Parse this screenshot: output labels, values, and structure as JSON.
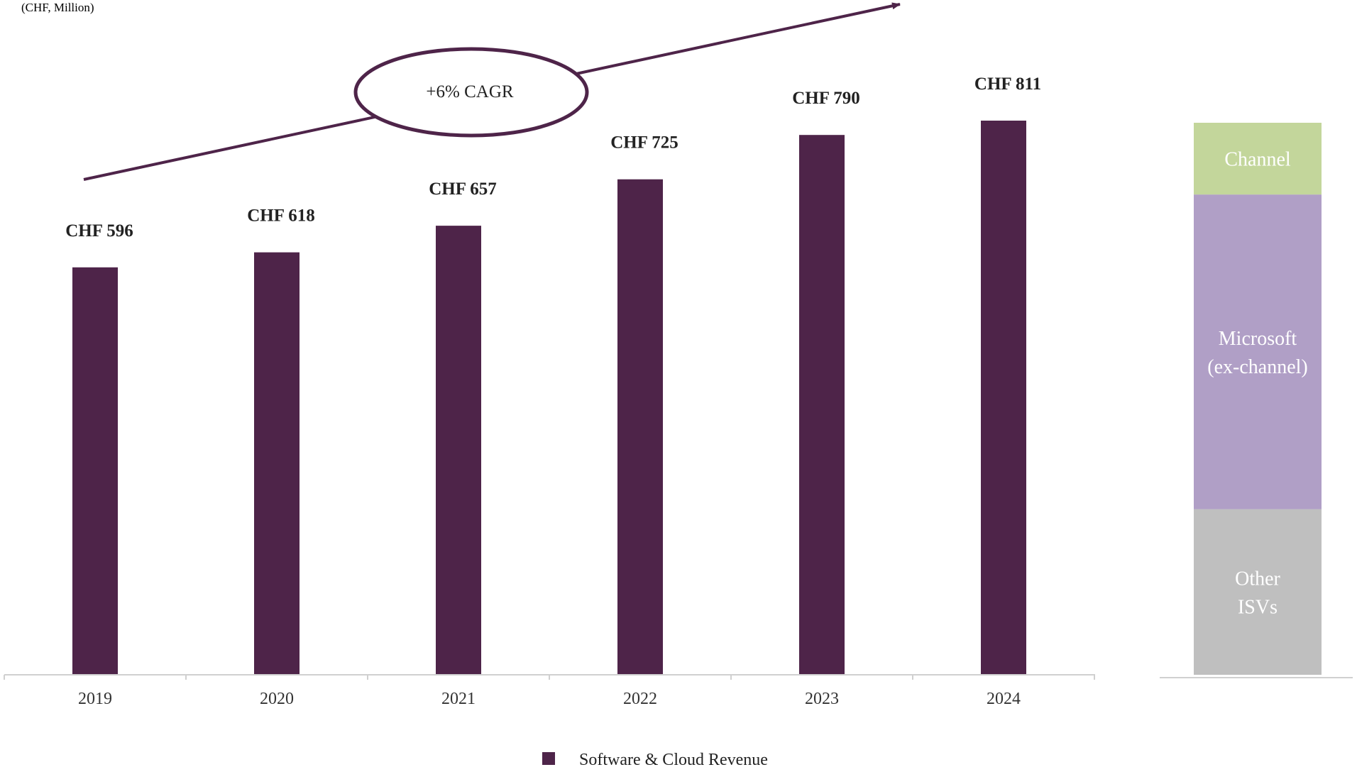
{
  "chart_data": {
    "type": "bar",
    "unit_label": "(CHF, Million)",
    "categories": [
      "2019",
      "2020",
      "2021",
      "2022",
      "2023",
      "2024"
    ],
    "series": [
      {
        "name": "Software & Cloud Revenue",
        "values": [
          596,
          618,
          657,
          725,
          790,
          811
        ],
        "data_labels": [
          "CHF 596",
          "CHF 618",
          "CHF 657",
          "CHF 725",
          "CHF 790",
          "CHF 811"
        ],
        "color": "#4e2449"
      }
    ],
    "annotation": "+6% CAGR",
    "breakdown_bar": {
      "segments": [
        {
          "label": "Other ISVs",
          "share": 0.3,
          "color": "#bfbfbf"
        },
        {
          "label": "Microsoft (ex-channel)",
          "share": 0.57,
          "color": "#b09fc6"
        },
        {
          "label": "Channel",
          "share": 0.13,
          "color": "#c3d69b"
        }
      ]
    },
    "legend": {
      "position": "bottom-center",
      "label": "Software & Cloud Revenue"
    },
    "grid": false
  }
}
